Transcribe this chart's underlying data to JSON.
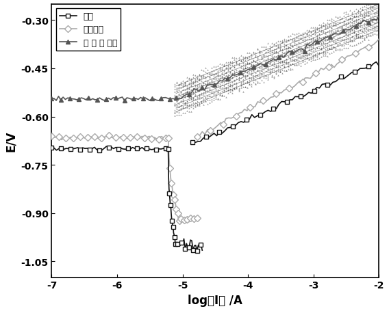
{
  "xlabel": "log（I） /A",
  "ylabel": "E/V",
  "xlim": [
    -7,
    -2
  ],
  "ylim": [
    -1.1,
    -0.25
  ],
  "yticks": [
    -1.05,
    -0.9,
    -0.75,
    -0.6,
    -0.45,
    -0.3
  ],
  "xticks": [
    -7,
    -6,
    -5,
    -4,
    -3,
    -2
  ],
  "legend_labels": [
    "镇前",
    "传统镇层",
    "本 发 明 镇层"
  ],
  "bg_color": "#ffffff",
  "plot_bg_color": "#ffffff",
  "series1_color": "#111111",
  "series2_color": "#aaaaaa",
  "series3_color": "#555555",
  "line_width": 1.5,
  "marker_size": 4
}
